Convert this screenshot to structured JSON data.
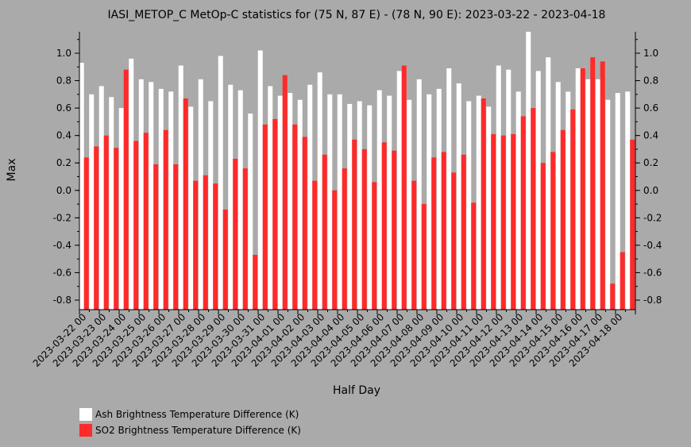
{
  "chart_data": {
    "type": "bar",
    "title": "IASI_METOP_C MetOp-C statistics for (75 N, 87 E) - (78 N, 90 E): 2023-03-22 - 2023-04-18",
    "xlabel": "Half Day",
    "ylabel": "Max",
    "ylim": [
      -0.87,
      1.16
    ],
    "yticks": [
      "1.0",
      "0.8",
      "0.6",
      "0.4",
      "0.2",
      "0.0",
      "-0.2",
      "-0.4",
      "-0.6",
      "-0.8"
    ],
    "ytick_values": [
      1.0,
      0.8,
      0.6,
      0.4,
      0.2,
      0.0,
      -0.2,
      -0.4,
      -0.6,
      -0.8
    ],
    "xtick_labels": [
      "2023-03-22 00",
      "2023-03-23 00",
      "2023-03-24 00",
      "2023-03-25 00",
      "2023-03-26 00",
      "2023-03-27 00",
      "2023-03-28 00",
      "2023-03-29 00",
      "2023-03-30 00",
      "2023-03-31 00",
      "2023-04-01 00",
      "2023-04-02 00",
      "2023-04-03 00",
      "2023-04-04 00",
      "2023-04-05 00",
      "2023-04-06 00",
      "2023-04-07 00",
      "2023-04-08 00",
      "2023-04-09 00",
      "2023-04-10 00",
      "2023-04-11 00",
      "2023-04-12 00",
      "2023-04-13 00",
      "2023-04-14 00",
      "2023-04-15 00",
      "2023-04-16 00",
      "2023-04-17 00",
      "2023-04-18 00"
    ],
    "legend_position": "bottom-left",
    "series": [
      {
        "name": "Ash Brightness Temperature Difference (K)",
        "color": "#ffffff",
        "values": [
          0.93,
          0.7,
          0.76,
          0.68,
          0.6,
          0.96,
          0.81,
          0.79,
          0.74,
          0.72,
          0.91,
          0.61,
          0.81,
          0.65,
          0.98,
          0.77,
          0.73,
          0.56,
          1.02,
          0.76,
          0.69,
          0.71,
          0.66,
          0.77,
          0.86,
          0.7,
          0.7,
          0.63,
          0.65,
          0.62,
          0.73,
          0.69,
          0.87,
          0.66,
          0.81,
          0.7,
          0.74,
          0.89,
          0.78,
          0.65,
          0.69,
          0.61,
          0.91,
          0.88,
          0.72,
          1.16,
          0.87,
          0.97,
          0.79,
          0.72,
          0.89,
          0.81,
          0.81,
          0.66,
          0.71,
          0.72
        ]
      },
      {
        "name": "SO2 Brightness Temperature Difference (K)",
        "color": "#ff2a2a",
        "values": [
          0.24,
          0.32,
          0.4,
          0.31,
          0.88,
          0.36,
          0.42,
          0.19,
          0.44,
          0.19,
          0.67,
          0.07,
          0.11,
          0.05,
          -0.14,
          0.23,
          0.16,
          -0.47,
          0.48,
          0.52,
          0.84,
          0.48,
          0.39,
          0.07,
          0.26,
          0.0,
          0.16,
          0.37,
          0.3,
          0.06,
          0.35,
          0.29,
          0.91,
          0.07,
          -0.1,
          0.24,
          0.28,
          0.13,
          0.26,
          -0.09,
          0.67,
          0.41,
          0.4,
          0.41,
          0.54,
          0.6,
          0.2,
          0.28,
          0.44,
          0.59,
          0.89,
          0.97,
          0.94,
          -0.68,
          -0.45,
          0.37
        ]
      }
    ]
  }
}
